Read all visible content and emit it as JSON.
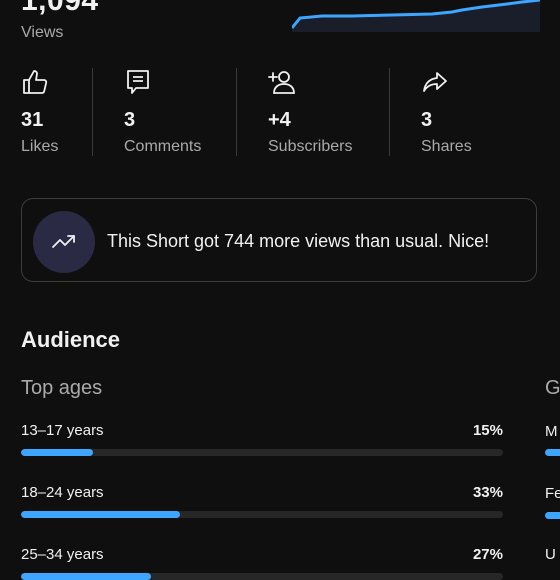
{
  "header": {
    "views_value": "1,094",
    "views_label": "Views"
  },
  "stats": [
    {
      "icon": "thumbs-up-icon",
      "value": "31",
      "label": "Likes"
    },
    {
      "icon": "comment-icon",
      "value": "3",
      "label": "Comments"
    },
    {
      "icon": "add-person-icon",
      "value": "+4",
      "label": "Subscribers"
    },
    {
      "icon": "share-icon",
      "value": "3",
      "label": "Shares"
    }
  ],
  "insight": {
    "icon": "trending-up-icon",
    "text": "This Short got 744 more views than usual. Nice!"
  },
  "audience": {
    "title": "Audience",
    "ages_title": "Top ages",
    "gender_title_partial": "G",
    "ages": [
      {
        "label": "13–17 years",
        "pct": "15%",
        "fraction": 0.15
      },
      {
        "label": "18–24 years",
        "pct": "33%",
        "fraction": 0.33
      },
      {
        "label": "25–34 years",
        "pct": "27%",
        "fraction": 0.27
      }
    ],
    "gender_partial_labels": [
      "M",
      "Fe",
      "U"
    ]
  },
  "colors": {
    "accent": "#3ea6ff",
    "background": "#0f0f0f",
    "circle": "#2b2a45"
  }
}
